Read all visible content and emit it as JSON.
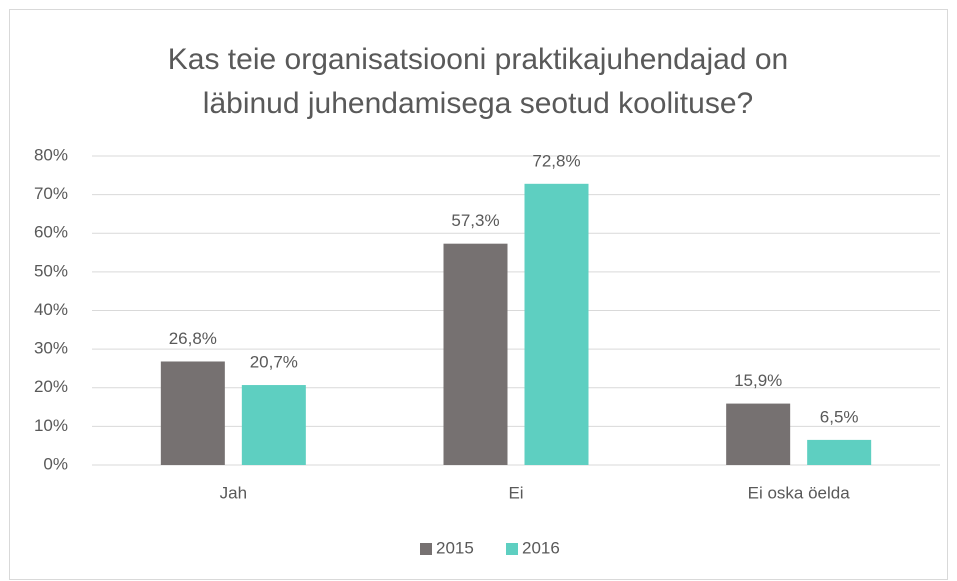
{
  "chart_data": {
    "type": "bar",
    "title": "Kas teie organisatsiooni praktikajuhendajad on läbinud juhendamisega seotud koolituse?",
    "categories": [
      "Jah",
      "Ei",
      "Ei oska öelda"
    ],
    "series": [
      {
        "name": "2015",
        "color": "#767171",
        "values": [
          26.8,
          57.3,
          15.9
        ],
        "value_labels": [
          "26,8%",
          "57,3%",
          "15,9%"
        ]
      },
      {
        "name": "2016",
        "color": "#5ecfc1",
        "values": [
          20.7,
          72.8,
          6.5
        ],
        "value_labels": [
          "20,7%",
          "72,8%",
          "6,5%"
        ]
      }
    ],
    "ylim": [
      0,
      80
    ],
    "yticks": [
      {
        "value": 0,
        "label": "0%"
      },
      {
        "value": 10,
        "label": "10%"
      },
      {
        "value": 20,
        "label": "20%"
      },
      {
        "value": 30,
        "label": "30%"
      },
      {
        "value": 40,
        "label": "40%"
      },
      {
        "value": 50,
        "label": "50%"
      },
      {
        "value": 60,
        "label": "60%"
      },
      {
        "value": 70,
        "label": "70%"
      },
      {
        "value": 80,
        "label": "80%"
      }
    ],
    "grid": true,
    "legend": "bottom"
  }
}
